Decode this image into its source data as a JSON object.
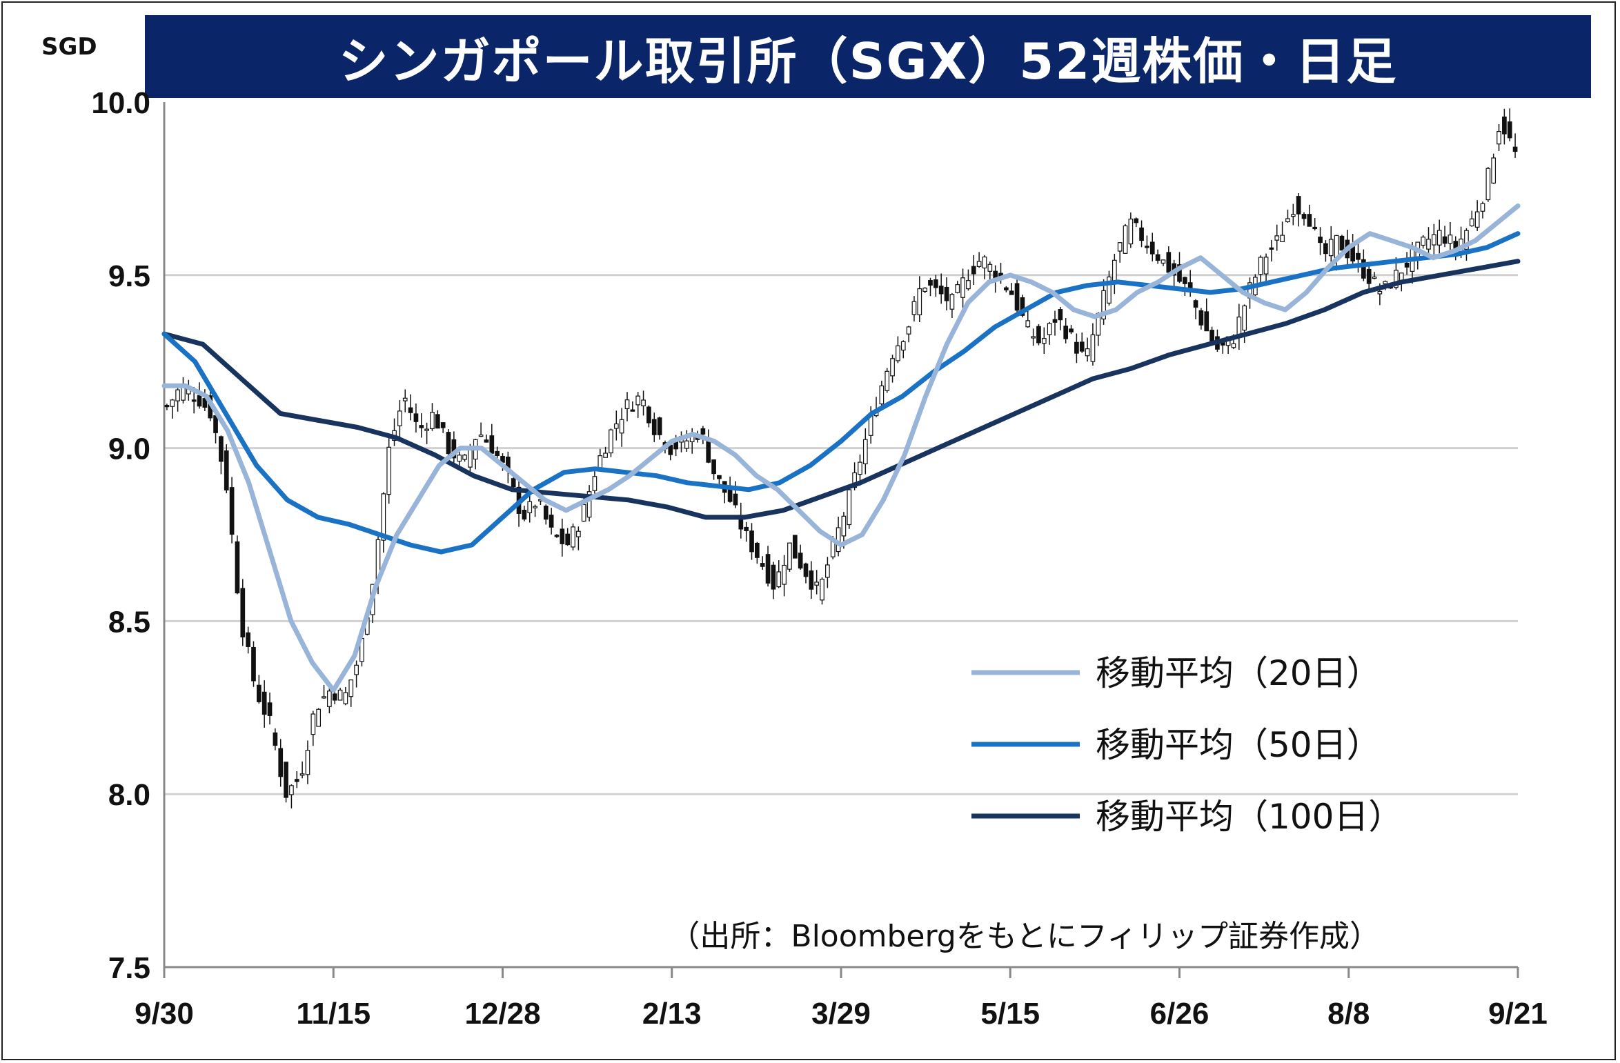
{
  "title": "シンガポール取引所（SGX）52週株価・日足",
  "unit": "SGD",
  "source": "（出所：Bloombergをもとにフィリップ証券作成）",
  "colors": {
    "title_bg": "#0a2668",
    "ma20": "#98b4d8",
    "ma50": "#1a72c4",
    "ma100": "#17335e",
    "candle_up_fill": "#ffffff",
    "candle_down_fill": "#111111",
    "grid": "#d0d0d0"
  },
  "chart_data": {
    "type": "candlestick",
    "yticks": [
      "7.5",
      "8.0",
      "8.5",
      "9.0",
      "9.5",
      "10.0"
    ],
    "ylim": [
      7.5,
      10.0
    ],
    "xticks": [
      "9/30",
      "11/15",
      "12/28",
      "2/13",
      "3/29",
      "5/15",
      "6/26",
      "8/8",
      "9/21"
    ],
    "legend": [
      "移動平均（20日）",
      "移動平均（50日）",
      "移動平均（100日）"
    ],
    "legend_position": "bottom-right",
    "close_path": [
      9.12,
      9.18,
      9.15,
      9.1,
      8.9,
      8.5,
      8.3,
      8.2,
      8.0,
      8.05,
      8.25,
      8.3,
      8.28,
      8.4,
      8.65,
      9.0,
      9.15,
      9.05,
      9.1,
      9.0,
      8.95,
      9.05,
      9.0,
      8.92,
      8.8,
      8.85,
      8.75,
      8.72,
      8.8,
      8.95,
      9.05,
      9.12,
      9.15,
      9.05,
      9.0,
      9.02,
      9.05,
      8.92,
      8.85,
      8.75,
      8.68,
      8.6,
      8.72,
      8.65,
      8.58,
      8.72,
      8.85,
      9.0,
      9.15,
      9.28,
      9.35,
      9.48,
      9.45,
      9.42,
      9.5,
      9.55,
      9.5,
      9.45,
      9.35,
      9.3,
      9.38,
      9.32,
      9.25,
      9.4,
      9.55,
      9.65,
      9.6,
      9.55,
      9.5,
      9.45,
      9.35,
      9.28,
      9.32,
      9.45,
      9.55,
      9.6,
      9.7,
      9.68,
      9.55,
      9.6,
      9.55,
      9.5,
      9.45,
      9.5,
      9.55,
      9.6,
      9.62,
      9.58,
      9.65,
      9.75,
      9.95,
      9.85
    ],
    "ma20": [
      9.18,
      9.18,
      9.15,
      9.05,
      8.9,
      8.7,
      8.5,
      8.38,
      8.3,
      8.4,
      8.6,
      8.75,
      8.85,
      8.95,
      9.0,
      9.0,
      8.95,
      8.9,
      8.85,
      8.82,
      8.85,
      8.88,
      8.92,
      8.97,
      9.02,
      9.04,
      9.02,
      8.98,
      8.92,
      8.88,
      8.82,
      8.76,
      8.72,
      8.75,
      8.85,
      8.98,
      9.15,
      9.3,
      9.42,
      9.48,
      9.5,
      9.48,
      9.45,
      9.4,
      9.38,
      9.4,
      9.45,
      9.48,
      9.52,
      9.55,
      9.5,
      9.45,
      9.42,
      9.4,
      9.45,
      9.52,
      9.58,
      9.62,
      9.6,
      9.58,
      9.55,
      9.57,
      9.6,
      9.65,
      9.7
    ],
    "ma50": [
      9.33,
      9.25,
      9.1,
      8.95,
      8.85,
      8.8,
      8.78,
      8.75,
      8.72,
      8.7,
      8.72,
      8.8,
      8.88,
      8.93,
      8.94,
      8.93,
      8.92,
      8.9,
      8.89,
      8.88,
      8.9,
      8.95,
      9.02,
      9.1,
      9.15,
      9.22,
      9.28,
      9.35,
      9.4,
      9.45,
      9.47,
      9.48,
      9.47,
      9.46,
      9.45,
      9.46,
      9.48,
      9.5,
      9.52,
      9.53,
      9.54,
      9.55,
      9.56,
      9.58,
      9.62
    ],
    "ma100": [
      9.33,
      9.3,
      9.2,
      9.1,
      9.08,
      9.06,
      9.03,
      8.98,
      8.92,
      8.88,
      8.87,
      8.86,
      8.85,
      8.83,
      8.8,
      8.8,
      8.82,
      8.86,
      8.9,
      8.95,
      9.0,
      9.05,
      9.1,
      9.15,
      9.2,
      9.23,
      9.27,
      9.3,
      9.33,
      9.36,
      9.4,
      9.45,
      9.48,
      9.5,
      9.52,
      9.54
    ]
  }
}
